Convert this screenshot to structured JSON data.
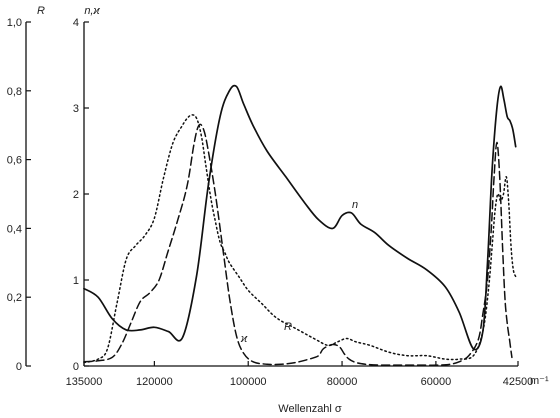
{
  "chart_data": {
    "type": "line",
    "xlabel": "Wellenzahl σ",
    "x_unit": "m⁻¹",
    "x_reversed": true,
    "xlim": [
      135000,
      42500
    ],
    "x_ticks": [
      {
        "value": 135000,
        "label": "135000"
      },
      {
        "value": 120000,
        "label": "120000"
      },
      {
        "value": 100000,
        "label": "100000"
      },
      {
        "value": 80000,
        "label": "80000"
      },
      {
        "value": 60000,
        "label": "60000"
      },
      {
        "value": 42500,
        "label": "42500"
      }
    ],
    "left_axis": {
      "label": "R",
      "ylim": [
        0,
        1.0
      ],
      "ticks": [
        {
          "value": 0,
          "label": "0"
        },
        {
          "value": 0.2,
          "label": "0,2"
        },
        {
          "value": 0.4,
          "label": "0,4"
        },
        {
          "value": 0.6,
          "label": "0,6"
        },
        {
          "value": 0.8,
          "label": "0,8"
        },
        {
          "value": 1.0,
          "label": "1,0"
        }
      ]
    },
    "right_axis": {
      "label": "n,ϰ",
      "ylim": [
        0,
        4
      ],
      "ticks": [
        {
          "value": 0,
          "label": "0"
        },
        {
          "value": 1,
          "label": "1"
        },
        {
          "value": 2,
          "label": "2"
        },
        {
          "value": 3,
          "label": "3"
        },
        {
          "value": 4,
          "label": "4"
        }
      ]
    },
    "grid": false,
    "series": [
      {
        "name": "n",
        "style": "solid",
        "axis": "n,ϰ",
        "x": [
          135000,
          132000,
          129000,
          126000,
          123000,
          120000,
          117000,
          114000,
          111000,
          108500,
          106000,
          104000,
          102500,
          101000,
          99000,
          96000,
          92000,
          88000,
          85000,
          82000,
          80000,
          78000,
          76000,
          73000,
          70000,
          66000,
          62000,
          58000,
          55000,
          52000,
          50000,
          49000,
          48000,
          47000,
          46200,
          45500,
          44800,
          44200,
          43600,
          43000
        ],
        "values": [
          0.9,
          0.8,
          0.55,
          0.42,
          0.42,
          0.45,
          0.4,
          0.33,
          1.05,
          2.1,
          2.9,
          3.2,
          3.25,
          3.05,
          2.8,
          2.5,
          2.2,
          1.9,
          1.7,
          1.6,
          1.75,
          1.78,
          1.65,
          1.55,
          1.4,
          1.25,
          1.12,
          0.92,
          0.62,
          0.2,
          0.4,
          1.2,
          2.3,
          3.0,
          3.25,
          3.1,
          2.9,
          2.85,
          2.75,
          2.55
        ]
      },
      {
        "name": "ϰ",
        "style": "dashed",
        "axis": "n,ϰ",
        "x": [
          135000,
          132000,
          129000,
          127000,
          125000,
          123000,
          121000,
          119000,
          117000,
          115000,
          113000,
          111500,
          110500,
          109500,
          108500,
          107000,
          105500,
          104000,
          102500,
          101000,
          99000,
          96000,
          93000,
          90000,
          87000,
          85000,
          84000,
          82000,
          80500,
          79500,
          78500,
          77000,
          75000,
          72000,
          68000,
          64000,
          60000,
          57000,
          55000,
          53000,
          51000,
          50000,
          49000,
          48200,
          47600,
          47000,
          46400,
          45800,
          45300,
          44800,
          44300,
          43800
        ],
        "values": [
          0.05,
          0.06,
          0.1,
          0.25,
          0.5,
          0.75,
          0.85,
          1.0,
          1.35,
          1.7,
          2.1,
          2.6,
          2.8,
          2.75,
          2.5,
          2.0,
          1.4,
          0.8,
          0.35,
          0.15,
          0.05,
          0.02,
          0.02,
          0.04,
          0.08,
          0.12,
          0.2,
          0.25,
          0.22,
          0.14,
          0.08,
          0.04,
          0.02,
          0.01,
          0.01,
          0.01,
          0.01,
          0.02,
          0.05,
          0.12,
          0.3,
          0.6,
          1.0,
          1.6,
          2.2,
          2.6,
          2.2,
          1.4,
          0.8,
          0.5,
          0.3,
          0.1
        ]
      },
      {
        "name": "R",
        "style": "dotted",
        "axis": "R",
        "x": [
          135000,
          132000,
          130000,
          128000,
          126000,
          124000,
          122000,
          120000,
          118000,
          116000,
          114000,
          113000,
          112000,
          111000,
          110000,
          109000,
          108000,
          107000,
          106000,
          105000,
          104000,
          102000,
          100000,
          97000,
          94000,
          90000,
          86000,
          83000,
          81000,
          79000,
          77000,
          74000,
          70000,
          66000,
          62000,
          58000,
          55000,
          52000,
          50000,
          48800,
          48000,
          47400,
          46800,
          46200,
          45600,
          45000,
          44500,
          44000,
          43500,
          43000
        ],
        "values": [
          0.01,
          0.02,
          0.05,
          0.18,
          0.31,
          0.35,
          0.38,
          0.43,
          0.55,
          0.65,
          0.7,
          0.72,
          0.73,
          0.72,
          0.67,
          0.58,
          0.49,
          0.42,
          0.36,
          0.33,
          0.3,
          0.26,
          0.22,
          0.18,
          0.14,
          0.11,
          0.08,
          0.06,
          0.07,
          0.08,
          0.07,
          0.06,
          0.04,
          0.03,
          0.03,
          0.02,
          0.02,
          0.03,
          0.1,
          0.22,
          0.35,
          0.45,
          0.5,
          0.48,
          0.5,
          0.55,
          0.48,
          0.35,
          0.28,
          0.26
        ]
      }
    ]
  }
}
